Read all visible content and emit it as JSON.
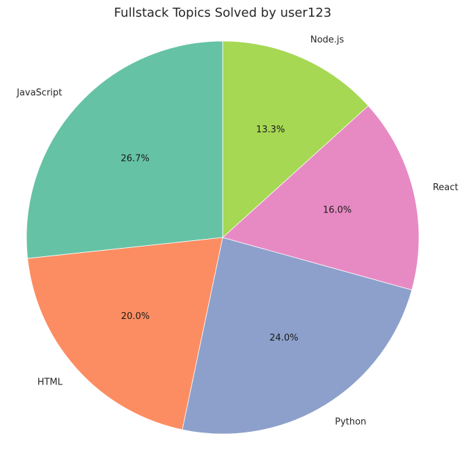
{
  "chart_data": {
    "type": "pie",
    "title": "Fullstack Topics Solved by user123",
    "start_angle_deg": 90,
    "direction": "counterclockwise",
    "categories": [
      "JavaScript",
      "HTML",
      "Python",
      "React",
      "Node.js"
    ],
    "values": [
      26.7,
      20.0,
      24.0,
      16.0,
      13.3
    ],
    "percent_labels": [
      "26.7%",
      "20.0%",
      "24.0%",
      "16.0%",
      "13.3%"
    ],
    "colors": [
      "#66c2a5",
      "#fc8d62",
      "#8da0cb",
      "#e78ac3",
      "#a6d854"
    ]
  }
}
